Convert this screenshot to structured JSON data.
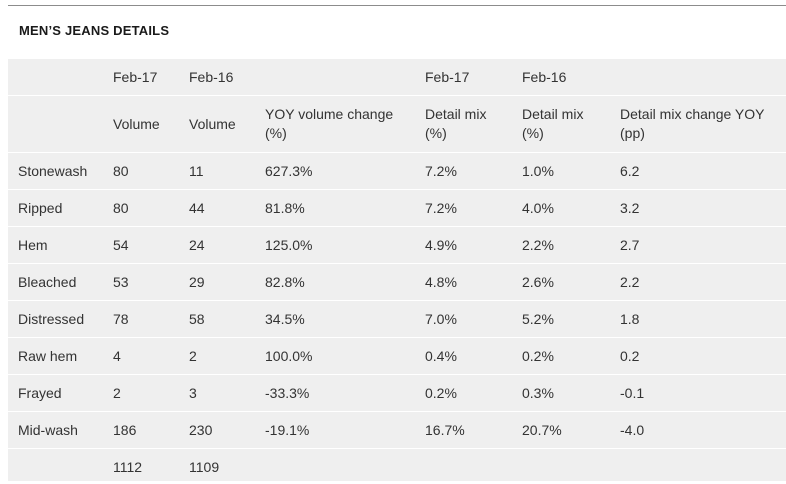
{
  "title": "MEN’S JEANS DETAILS",
  "header_row1": [
    "",
    "Feb-17",
    "Feb-16",
    "",
    "Feb-17",
    "Feb-16",
    ""
  ],
  "header_row2": [
    "",
    "Volume",
    "Volume",
    "YOY volume change\n(%)",
    "Detail mix\n(%)",
    "Detail mix\n(%)",
    "Detail mix change YOY\n(pp)"
  ],
  "rows": [
    [
      "Stonewash",
      "80",
      "11",
      "627.3%",
      "7.2%",
      "1.0%",
      "6.2"
    ],
    [
      "Ripped",
      "80",
      "44",
      "81.8%",
      "7.2%",
      "4.0%",
      "3.2"
    ],
    [
      "Hem",
      "54",
      "24",
      "125.0%",
      "4.9%",
      "2.2%",
      "2.7"
    ],
    [
      "Bleached",
      "53",
      "29",
      "82.8%",
      "4.8%",
      "2.6%",
      "2.2"
    ],
    [
      "Distressed",
      "78",
      "58",
      "34.5%",
      "7.0%",
      "5.2%",
      "1.8"
    ],
    [
      "Raw hem",
      "4",
      "2",
      "100.0%",
      "0.4%",
      "0.2%",
      "0.2"
    ],
    [
      "Frayed",
      "2",
      "3",
      "-33.3%",
      "0.2%",
      "0.3%",
      "-0.1"
    ],
    [
      "Mid-wash",
      "186",
      "230",
      "-19.1%",
      "16.7%",
      "20.7%",
      "-4.0"
    ]
  ],
  "totals": [
    "",
    "1112",
    "1109",
    "",
    "",
    "",
    ""
  ]
}
